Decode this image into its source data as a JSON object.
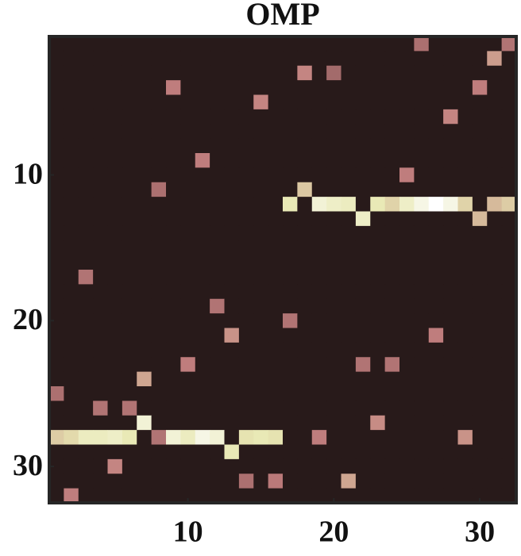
{
  "chart_data": {
    "type": "heatmap",
    "title": "OMP",
    "colormap": "pink",
    "clim": [
      0,
      1
    ],
    "xlim": [
      0.5,
      32.5
    ],
    "ylim": [
      0.5,
      32.5
    ],
    "y_reversed": true,
    "xticks": [
      10,
      20,
      30
    ],
    "yticks": [
      10,
      20,
      30
    ],
    "z": [
      [
        0,
        0,
        0,
        0,
        0,
        0,
        0,
        0,
        0,
        0,
        0,
        0,
        0,
        0,
        0,
        0,
        0,
        0,
        0,
        0,
        0,
        0,
        0,
        0,
        0,
        0.28,
        0,
        0,
        0,
        0,
        0,
        0.3
      ],
      [
        0,
        0,
        0,
        0,
        0,
        0,
        0,
        0,
        0,
        0,
        0,
        0,
        0,
        0,
        0,
        0,
        0,
        0,
        0,
        0,
        0,
        0,
        0,
        0,
        0,
        0,
        0,
        0,
        0,
        0,
        0.45,
        0
      ],
      [
        0,
        0,
        0,
        0,
        0,
        0,
        0,
        0,
        0,
        0,
        0,
        0,
        0,
        0,
        0,
        0,
        0,
        0.38,
        0,
        0.25,
        0,
        0,
        0,
        0,
        0,
        0,
        0,
        0,
        0,
        0,
        0,
        0
      ],
      [
        0,
        0,
        0,
        0,
        0,
        0,
        0,
        0,
        0.35,
        0,
        0,
        0,
        0,
        0,
        0,
        0,
        0,
        0,
        0,
        0,
        0,
        0,
        0,
        0,
        0,
        0,
        0,
        0,
        0,
        0.35,
        0,
        0
      ],
      [
        0,
        0,
        0,
        0,
        0,
        0,
        0,
        0,
        0,
        0,
        0,
        0,
        0,
        0,
        0.38,
        0,
        0,
        0,
        0,
        0,
        0,
        0,
        0,
        0,
        0,
        0,
        0,
        0,
        0,
        0,
        0,
        0
      ],
      [
        0,
        0,
        0,
        0,
        0,
        0,
        0,
        0,
        0,
        0,
        0,
        0,
        0,
        0,
        0,
        0,
        0,
        0,
        0,
        0,
        0,
        0,
        0,
        0,
        0,
        0,
        0,
        0.38,
        0,
        0,
        0,
        0
      ],
      [
        0,
        0,
        0,
        0,
        0,
        0,
        0,
        0,
        0,
        0,
        0,
        0,
        0,
        0,
        0,
        0,
        0,
        0,
        0,
        0,
        0,
        0,
        0,
        0,
        0,
        0,
        0,
        0,
        0,
        0,
        0,
        0
      ],
      [
        0,
        0,
        0,
        0,
        0,
        0,
        0,
        0,
        0,
        0,
        0,
        0,
        0,
        0,
        0,
        0,
        0,
        0,
        0,
        0,
        0,
        0,
        0,
        0,
        0,
        0,
        0,
        0,
        0,
        0,
        0,
        0
      ],
      [
        0,
        0,
        0,
        0,
        0,
        0,
        0,
        0,
        0,
        0,
        0.35,
        0,
        0,
        0,
        0,
        0,
        0,
        0,
        0,
        0,
        0,
        0,
        0,
        0,
        0,
        0,
        0,
        0,
        0,
        0,
        0,
        0
      ],
      [
        0,
        0,
        0,
        0,
        0,
        0,
        0,
        0,
        0,
        0,
        0,
        0,
        0,
        0,
        0,
        0,
        0,
        0,
        0,
        0,
        0,
        0,
        0,
        0,
        0.35,
        0,
        0,
        0,
        0,
        0,
        0,
        0
      ],
      [
        0,
        0,
        0,
        0,
        0,
        0,
        0,
        0.28,
        0,
        0,
        0,
        0,
        0,
        0,
        0,
        0,
        0,
        0.6,
        0,
        0,
        0,
        0,
        0,
        0,
        0,
        0,
        0,
        0,
        0,
        0,
        0,
        0
      ],
      [
        0,
        0,
        0,
        0,
        0,
        0,
        0,
        0,
        0,
        0,
        0,
        0,
        0,
        0,
        0,
        0,
        0.75,
        0,
        0.85,
        0.8,
        0.78,
        0,
        0.75,
        0.65,
        0.8,
        0.9,
        1,
        0.9,
        0.65,
        0,
        0.55,
        0.62
      ],
      [
        0,
        0,
        0,
        0,
        0,
        0,
        0,
        0,
        0,
        0,
        0,
        0,
        0,
        0,
        0,
        0,
        0,
        0,
        0,
        0,
        0,
        0.8,
        0,
        0,
        0,
        0,
        0,
        0,
        0,
        0.55,
        0,
        0
      ],
      [
        0,
        0,
        0,
        0,
        0,
        0,
        0,
        0,
        0,
        0,
        0,
        0,
        0,
        0,
        0,
        0,
        0,
        0,
        0,
        0,
        0,
        0,
        0,
        0,
        0,
        0,
        0,
        0,
        0,
        0,
        0,
        0
      ],
      [
        0,
        0,
        0,
        0,
        0,
        0,
        0,
        0,
        0,
        0,
        0,
        0,
        0,
        0,
        0,
        0,
        0,
        0,
        0,
        0,
        0,
        0,
        0,
        0,
        0,
        0,
        0,
        0,
        0,
        0,
        0,
        0
      ],
      [
        0,
        0,
        0,
        0,
        0,
        0,
        0,
        0,
        0,
        0,
        0,
        0,
        0,
        0,
        0,
        0,
        0,
        0,
        0,
        0,
        0,
        0,
        0,
        0,
        0,
        0,
        0,
        0,
        0,
        0,
        0,
        0
      ],
      [
        0,
        0,
        0.3,
        0,
        0,
        0,
        0,
        0,
        0,
        0,
        0,
        0,
        0,
        0,
        0,
        0,
        0,
        0,
        0,
        0,
        0,
        0,
        0,
        0,
        0,
        0,
        0,
        0,
        0,
        0,
        0,
        0
      ],
      [
        0,
        0,
        0,
        0,
        0,
        0,
        0,
        0,
        0,
        0,
        0,
        0,
        0,
        0,
        0,
        0,
        0,
        0,
        0,
        0,
        0,
        0,
        0,
        0,
        0,
        0,
        0,
        0,
        0,
        0,
        0,
        0
      ],
      [
        0,
        0,
        0,
        0,
        0,
        0,
        0,
        0,
        0,
        0,
        0,
        0.3,
        0,
        0,
        0,
        0,
        0,
        0,
        0,
        0,
        0,
        0,
        0,
        0,
        0,
        0,
        0,
        0,
        0,
        0,
        0,
        0
      ],
      [
        0,
        0,
        0,
        0,
        0,
        0,
        0,
        0,
        0,
        0,
        0,
        0,
        0,
        0,
        0,
        0,
        0.3,
        0,
        0,
        0,
        0,
        0,
        0,
        0,
        0,
        0,
        0,
        0,
        0,
        0,
        0,
        0
      ],
      [
        0,
        0,
        0,
        0,
        0,
        0,
        0,
        0,
        0,
        0,
        0,
        0,
        0.42,
        0,
        0,
        0,
        0,
        0,
        0,
        0,
        0,
        0,
        0,
        0,
        0,
        0,
        0.35,
        0,
        0,
        0,
        0,
        0
      ],
      [
        0,
        0,
        0,
        0,
        0,
        0,
        0,
        0,
        0,
        0,
        0,
        0,
        0,
        0,
        0,
        0,
        0,
        0,
        0,
        0,
        0,
        0,
        0,
        0,
        0,
        0,
        0,
        0,
        0,
        0,
        0,
        0
      ],
      [
        0,
        0,
        0,
        0,
        0,
        0,
        0,
        0,
        0,
        0.35,
        0,
        0,
        0,
        0,
        0,
        0,
        0,
        0,
        0,
        0,
        0,
        0.3,
        0,
        0.3,
        0,
        0,
        0,
        0,
        0,
        0,
        0,
        0
      ],
      [
        0,
        0,
        0,
        0,
        0,
        0,
        0.48,
        0,
        0,
        0,
        0,
        0,
        0,
        0,
        0,
        0,
        0,
        0,
        0,
        0,
        0,
        0,
        0,
        0,
        0,
        0,
        0,
        0,
        0,
        0,
        0,
        0
      ],
      [
        0.28,
        0,
        0,
        0,
        0,
        0,
        0,
        0,
        0,
        0,
        0,
        0,
        0,
        0,
        0,
        0,
        0,
        0,
        0,
        0,
        0,
        0,
        0,
        0,
        0,
        0,
        0,
        0,
        0,
        0,
        0,
        0
      ],
      [
        0,
        0,
        0,
        0.3,
        0,
        0.3,
        0,
        0,
        0,
        0,
        0,
        0,
        0,
        0,
        0,
        0,
        0,
        0,
        0,
        0,
        0,
        0,
        0,
        0,
        0,
        0,
        0,
        0,
        0,
        0,
        0,
        0
      ],
      [
        0,
        0,
        0,
        0,
        0,
        0,
        0.85,
        0,
        0,
        0,
        0,
        0,
        0,
        0,
        0,
        0,
        0,
        0,
        0,
        0,
        0,
        0,
        0.4,
        0,
        0,
        0,
        0,
        0,
        0,
        0,
        0,
        0
      ],
      [
        0.62,
        0.68,
        0.78,
        0.78,
        0.8,
        0.75,
        0,
        0.3,
        0.85,
        0.78,
        0.9,
        0.85,
        0,
        0.72,
        0.75,
        0.72,
        0,
        0,
        0.35,
        0,
        0,
        0,
        0,
        0,
        0,
        0,
        0,
        0,
        0.42,
        0,
        0,
        0
      ],
      [
        0,
        0,
        0,
        0,
        0,
        0,
        0,
        0,
        0,
        0,
        0,
        0,
        0.75,
        0,
        0,
        0,
        0,
        0,
        0,
        0,
        0,
        0,
        0,
        0,
        0,
        0,
        0,
        0,
        0,
        0,
        0,
        0
      ],
      [
        0,
        0,
        0,
        0,
        0.38,
        0,
        0,
        0,
        0,
        0,
        0,
        0,
        0,
        0,
        0,
        0,
        0,
        0,
        0,
        0,
        0,
        0,
        0,
        0,
        0,
        0,
        0,
        0,
        0,
        0,
        0,
        0
      ],
      [
        0,
        0,
        0,
        0,
        0,
        0,
        0,
        0,
        0,
        0,
        0,
        0,
        0,
        0.28,
        0,
        0.33,
        0,
        0,
        0,
        0,
        0.48,
        0,
        0,
        0,
        0,
        0,
        0,
        0,
        0,
        0,
        0,
        0
      ],
      [
        0,
        0.35,
        0,
        0,
        0,
        0,
        0,
        0,
        0,
        0,
        0,
        0,
        0,
        0,
        0,
        0,
        0,
        0,
        0,
        0,
        0,
        0,
        0,
        0,
        0,
        0,
        0,
        0,
        0,
        0,
        0,
        0
      ]
    ]
  }
}
